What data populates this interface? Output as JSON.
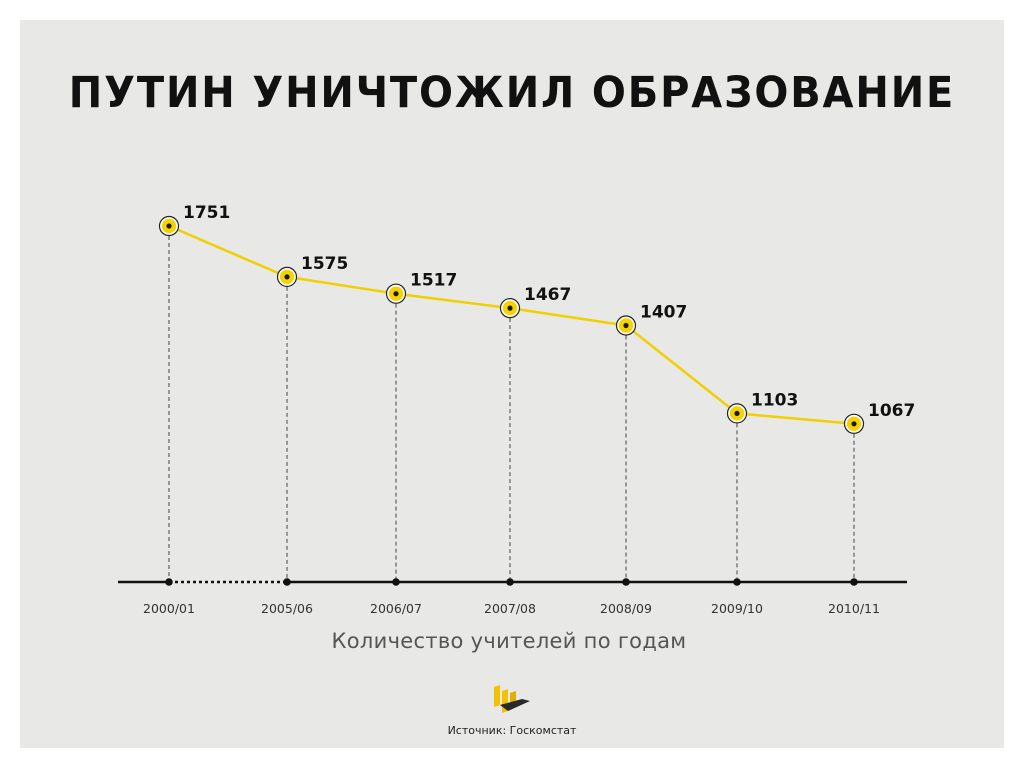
{
  "title": "ПУТИН УНИЧТОЖИЛ ОБРАЗОВАНИЕ",
  "caption": "Количество учителей по годам",
  "source": "Источник: Госкомстат",
  "colors": {
    "background": "#e8e8e6",
    "line": "#f0d000",
    "marker_fill": "#f5d200",
    "marker_dot": "#1a1a1a",
    "axis": "#111111",
    "text": "#111111"
  },
  "chart_data": {
    "type": "line",
    "title": "ПУТИН УНИЧТОЖИЛ ОБРАЗОВАНИЕ",
    "xlabel": "Количество учителей по годам",
    "ylabel": "",
    "categories": [
      "2000/01",
      "2005/06",
      "2006/07",
      "2007/08",
      "2008/09",
      "2009/10",
      "2010/11"
    ],
    "values": [
      1751,
      1575,
      1517,
      1467,
      1407,
      1103,
      1067
    ],
    "data_labels": [
      "1751",
      "1575",
      "1517",
      "1467",
      "1407",
      "1103",
      "1067"
    ],
    "ylim": [
      520,
      1751
    ],
    "grid": false,
    "axis_break_after_index": 0
  }
}
